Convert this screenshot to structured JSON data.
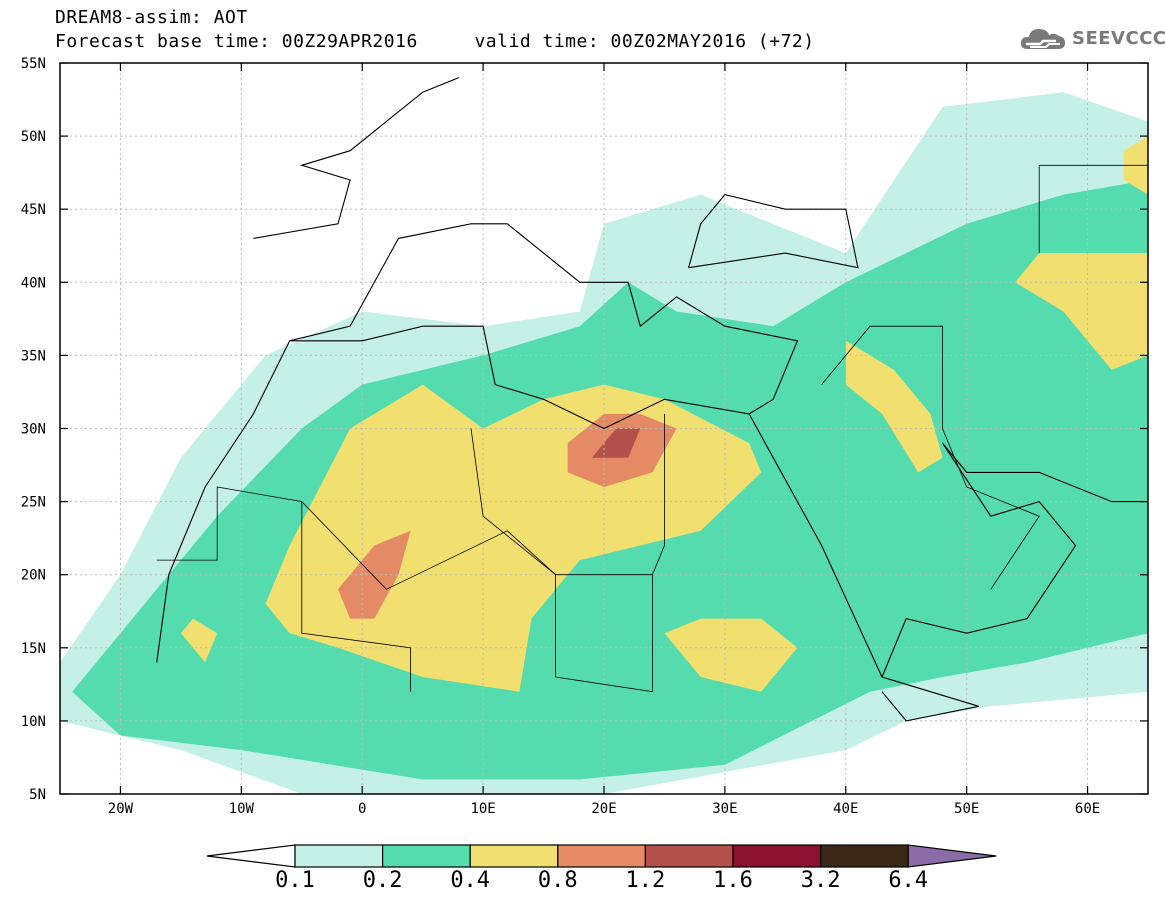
{
  "header": {
    "title": "DREAM8-assim: AOT",
    "forecast_base": "Forecast base time: 00Z29APR2016",
    "valid_time": "valid time: 00Z02MAY2016 (+72)"
  },
  "logo": {
    "text": "SEEVCCC",
    "icon": "cloud-icon"
  },
  "map": {
    "lat_labels": [
      "55N",
      "50N",
      "45N",
      "40N",
      "35N",
      "30N",
      "25N",
      "20N",
      "15N",
      "10N",
      "5N"
    ],
    "lon_labels": [
      "20W",
      "10W",
      "0",
      "10E",
      "20E",
      "30E",
      "40E",
      "50E",
      "60E"
    ],
    "lat_range": [
      5,
      55
    ],
    "lon_range": [
      -25,
      65
    ],
    "lat_ticks": [
      55,
      50,
      45,
      40,
      35,
      30,
      25,
      20,
      15,
      10,
      5
    ],
    "lon_ticks": [
      -20,
      -10,
      0,
      10,
      20,
      30,
      40,
      50,
      60
    ],
    "grid": true
  },
  "colorbar": {
    "levels": [
      "0.1",
      "0.2",
      "0.4",
      "0.8",
      "1.2",
      "1.6",
      "3.2",
      "6.4"
    ],
    "colors": [
      "#ffffff",
      "#c4f0e8",
      "#54dcae",
      "#f1e070",
      "#e48a64",
      "#b4504a",
      "#8c1030",
      "#3c2818",
      "#8c6ca8"
    ]
  },
  "fields": [
    {
      "level": 0.1,
      "color": "#c4f0e8",
      "lonlat": [
        [
          -25,
          14
        ],
        [
          -20,
          20
        ],
        [
          -15,
          28
        ],
        [
          -8,
          35
        ],
        [
          0,
          38
        ],
        [
          10,
          37
        ],
        [
          18,
          38
        ],
        [
          20,
          44
        ],
        [
          28,
          46
        ],
        [
          40,
          42
        ],
        [
          48,
          52
        ],
        [
          58,
          53
        ],
        [
          65,
          51
        ],
        [
          65,
          12
        ],
        [
          52,
          11
        ],
        [
          45,
          10
        ],
        [
          40,
          8
        ],
        [
          20,
          5
        ],
        [
          -5,
          5
        ],
        [
          -15,
          8
        ],
        [
          -25,
          10
        ]
      ]
    },
    {
      "level": 0.2,
      "color": "#54dcae",
      "lonlat": [
        [
          -24,
          12
        ],
        [
          -18,
          18
        ],
        [
          -12,
          24
        ],
        [
          -5,
          30
        ],
        [
          0,
          33
        ],
        [
          10,
          35
        ],
        [
          18,
          37
        ],
        [
          22,
          40
        ],
        [
          26,
          38
        ],
        [
          34,
          37
        ],
        [
          40,
          40
        ],
        [
          50,
          44
        ],
        [
          58,
          46
        ],
        [
          65,
          47
        ],
        [
          65,
          16
        ],
        [
          55,
          14
        ],
        [
          48,
          13
        ],
        [
          42,
          12
        ],
        [
          30,
          7
        ],
        [
          18,
          6
        ],
        [
          5,
          6
        ],
        [
          -10,
          8
        ],
        [
          -20,
          9
        ]
      ]
    },
    {
      "level": 0.4,
      "color": "#f1e070",
      "lonlat": [
        [
          -8,
          18
        ],
        [
          -6,
          22
        ],
        [
          -1,
          30
        ],
        [
          5,
          33
        ],
        [
          10,
          30
        ],
        [
          15,
          32
        ],
        [
          20,
          33
        ],
        [
          25,
          32
        ],
        [
          32,
          29
        ],
        [
          33,
          27
        ],
        [
          28,
          23
        ],
        [
          18,
          21
        ],
        [
          14,
          17
        ],
        [
          13,
          12
        ],
        [
          5,
          13
        ],
        [
          -2,
          15
        ],
        [
          -6,
          16
        ]
      ]
    },
    {
      "level": 0.4,
      "color": "#f1e070",
      "lonlat": [
        [
          25,
          16
        ],
        [
          28,
          13
        ],
        [
          33,
          12
        ],
        [
          36,
          15
        ],
        [
          33,
          17
        ],
        [
          28,
          17
        ]
      ]
    },
    {
      "level": 0.4,
      "color": "#f1e070",
      "lonlat": [
        [
          40,
          36
        ],
        [
          44,
          34
        ],
        [
          47,
          31
        ],
        [
          48,
          28
        ],
        [
          46,
          27
        ],
        [
          43,
          31
        ],
        [
          40,
          33
        ]
      ]
    },
    {
      "level": 0.4,
      "color": "#f1e070",
      "lonlat": [
        [
          54,
          40
        ],
        [
          58,
          38
        ],
        [
          62,
          34
        ],
        [
          65,
          35
        ],
        [
          65,
          42
        ],
        [
          60,
          42
        ],
        [
          56,
          42
        ]
      ]
    },
    {
      "level": 0.4,
      "color": "#f1e070",
      "lonlat": [
        [
          63,
          47
        ],
        [
          65,
          46
        ],
        [
          65,
          50
        ],
        [
          63,
          49
        ]
      ]
    },
    {
      "level": 0.4,
      "color": "#f1e070",
      "lonlat": [
        [
          -15,
          16
        ],
        [
          -13,
          14
        ],
        [
          -12,
          16
        ],
        [
          -14,
          17
        ]
      ]
    },
    {
      "level": 0.8,
      "color": "#e48a64",
      "lonlat": [
        [
          -2,
          19
        ],
        [
          1,
          22
        ],
        [
          4,
          23
        ],
        [
          3,
          20
        ],
        [
          1,
          17
        ],
        [
          -1,
          17
        ]
      ]
    },
    {
      "level": 0.8,
      "color": "#e48a64",
      "lonlat": [
        [
          17,
          29
        ],
        [
          20,
          31
        ],
        [
          23,
          31
        ],
        [
          26,
          30
        ],
        [
          24,
          27
        ],
        [
          20,
          26
        ],
        [
          17,
          27
        ]
      ]
    },
    {
      "level": 1.2,
      "color": "#b4504a",
      "lonlat": [
        [
          19,
          28
        ],
        [
          21,
          30
        ],
        [
          23,
          30
        ],
        [
          22,
          28
        ]
      ]
    }
  ],
  "coast": [
    {
      "kind": "coast",
      "lonlat": [
        [
          -17,
          14
        ],
        [
          -16,
          20
        ],
        [
          -13,
          26
        ],
        [
          -9,
          31
        ],
        [
          -6,
          36
        ]
      ]
    },
    {
      "kind": "coast",
      "lonlat": [
        [
          -6,
          36
        ],
        [
          0,
          36
        ],
        [
          5,
          37
        ],
        [
          10,
          37
        ],
        [
          11,
          33
        ],
        [
          15,
          32
        ],
        [
          20,
          30
        ],
        [
          25,
          32
        ],
        [
          32,
          31
        ],
        [
          34,
          32
        ],
        [
          36,
          36
        ],
        [
          30,
          37
        ],
        [
          26,
          39
        ],
        [
          23,
          37
        ],
        [
          22,
          40
        ],
        [
          18,
          40
        ],
        [
          12,
          44
        ],
        [
          9,
          44
        ],
        [
          3,
          43
        ],
        [
          -1,
          37
        ],
        [
          -6,
          36
        ]
      ]
    },
    {
      "kind": "coast",
      "lonlat": [
        [
          32,
          31
        ],
        [
          34,
          28
        ],
        [
          38,
          22
        ],
        [
          43,
          13
        ],
        [
          51,
          11
        ],
        [
          45,
          10
        ],
        [
          43,
          12
        ]
      ]
    },
    {
      "kind": "coast",
      "lonlat": [
        [
          43,
          13
        ],
        [
          45,
          17
        ],
        [
          50,
          16
        ],
        [
          55,
          17
        ],
        [
          59,
          22
        ],
        [
          56,
          25
        ],
        [
          52,
          24
        ],
        [
          48,
          29
        ],
        [
          50,
          27
        ],
        [
          56,
          27
        ],
        [
          62,
          25
        ],
        [
          65,
          25
        ]
      ]
    },
    {
      "kind": "coast",
      "lonlat": [
        [
          -9,
          43
        ],
        [
          -2,
          44
        ],
        [
          -1,
          47
        ],
        [
          -5,
          48
        ],
        [
          -1,
          49
        ],
        [
          2,
          51
        ],
        [
          5,
          53
        ],
        [
          8,
          54
        ]
      ]
    },
    {
      "kind": "coast",
      "lonlat": [
        [
          27,
          41
        ],
        [
          35,
          42
        ],
        [
          41,
          41
        ],
        [
          40,
          45
        ],
        [
          35,
          45
        ],
        [
          30,
          46
        ],
        [
          28,
          44
        ],
        [
          27,
          41
        ]
      ]
    },
    {
      "kind": "border",
      "lonlat": [
        [
          -17,
          21
        ],
        [
          -12,
          21
        ],
        [
          -12,
          26
        ],
        [
          -5,
          25
        ],
        [
          -5,
          16
        ],
        [
          4,
          15
        ],
        [
          4,
          12
        ]
      ]
    },
    {
      "kind": "border",
      "lonlat": [
        [
          -5,
          25
        ],
        [
          2,
          19
        ],
        [
          12,
          23
        ],
        [
          16,
          20
        ],
        [
          24,
          20
        ],
        [
          25,
          22
        ],
        [
          25,
          31
        ]
      ]
    },
    {
      "kind": "border",
      "lonlat": [
        [
          9,
          30
        ],
        [
          10,
          24
        ],
        [
          16,
          20
        ],
        [
          16,
          13
        ],
        [
          24,
          12
        ],
        [
          24,
          20
        ]
      ]
    },
    {
      "kind": "border",
      "lonlat": [
        [
          38,
          33
        ],
        [
          42,
          37
        ],
        [
          48,
          37
        ],
        [
          48,
          30
        ],
        [
          50,
          26
        ],
        [
          56,
          24
        ],
        [
          52,
          19
        ]
      ]
    },
    {
      "kind": "border",
      "lonlat": [
        [
          56,
          42
        ],
        [
          56,
          48
        ],
        [
          65,
          48
        ]
      ]
    }
  ]
}
